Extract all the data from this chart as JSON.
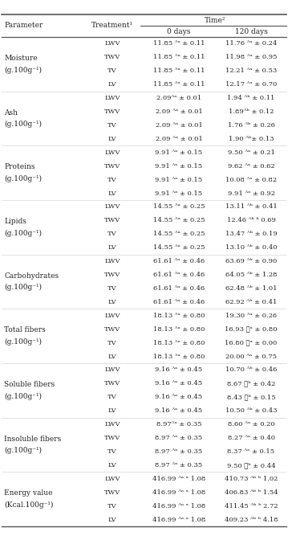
{
  "time_header": "Time²",
  "col_headers": [
    "Parameter",
    "Treatment¹",
    "0 days",
    "120 days"
  ],
  "rows": [
    [
      "Moisture\n(g.100g⁻¹)",
      "LWV",
      "11.85 ᴬᵃ ± 0.11",
      "11.76 ᴬᵃ ± 0.24"
    ],
    [
      "",
      "TWV",
      "11.85 ᴬᵃ ± 0.11",
      "11.98 ᴬᵃ ± 0.95"
    ],
    [
      "",
      "TV",
      "11.85 ᴬᵃ ± 0.11",
      "12.21 ᴬᵃ ± 0.53"
    ],
    [
      "",
      "LV",
      "11.85 ᴬᵃ ± 0.11",
      "12.17 ᴬᵃ ± 0.70"
    ],
    [
      "Ash\n(g.100g⁻¹)",
      "LWV",
      "2.09ᴬᵃ ± 0.01",
      "1.94 ᴬᵇ ± 0.11"
    ],
    [
      "",
      "TWV",
      "2.09 ᴬᵃ ± 0.01",
      "1.89ᴬᵇ ± 0.12"
    ],
    [
      "",
      "TV",
      "2.09 ᴬᵃ ± 0.01",
      "1.76 ᴬᵇ ± 0.26"
    ],
    [
      "",
      "LV",
      "2.09 ᴬᵃ ± 0.01",
      "1.90 ᴬᵇ± 0.13"
    ],
    [
      "Proteins\n(g.100g⁻¹)",
      "LWV",
      "9.91 ᴬᵃ ± 0.15",
      "9.50 ᴬᵃ ± 0.21"
    ],
    [
      "",
      "TWV",
      "9.91 ᴬᵃ ± 0.15",
      "9.62 ᴬᵃ ± 0.62"
    ],
    [
      "",
      "TV",
      "9.91 ᴬᵃ ± 0.15",
      "10.08 ᴬᵃ ± 0.82"
    ],
    [
      "",
      "LV",
      "9.91 ᴬᵃ ± 0.15",
      "9.91 ᴬᵃ ± 0.92"
    ],
    [
      "Lipids\n(g.100g⁻¹)",
      "LWV",
      "14.55 ᴬᵃ ± 0.25",
      "13.11 ᴬᵇ ± 0.41"
    ],
    [
      "",
      "TWV",
      "14.55 ᴬᵃ ± 0.25",
      "12.46 ᴬᵇ ᵇ 0.69"
    ],
    [
      "",
      "TV",
      "14.55 ᴬᵃ ± 0.25",
      "13.47 ᴬᵇ ± 0.19"
    ],
    [
      "",
      "LV",
      "14.55 ᴬᵃ ± 0.25",
      "13.10 ᴬᵇ ± 0.40"
    ],
    [
      "Carbohydrates\n(g.100g⁻¹)",
      "LWV",
      "61.61 ᴬᵃ ± 0.46",
      "63.69 ᴬᵇ ± 0.90"
    ],
    [
      "",
      "TWV",
      "61.61 ᴬᵃ ± 0.46",
      "64.05 ᴬᵇ ± 1.28"
    ],
    [
      "",
      "TV",
      "61.61 ᴬᵃ ± 0.46",
      "62.48 ᴬᵇ ± 1.01"
    ],
    [
      "",
      "LV",
      "61.61 ᴬᵃ ± 0.46",
      "62.92 ᴬᵇ ± 0.41"
    ],
    [
      "Total fibers\n(g.100g⁻¹)",
      "LWV",
      "18.13 ᴬᵃ ± 0.80",
      "19.30 ᴬᵃ ± 0.26"
    ],
    [
      "",
      "TWV",
      "18.13 ᴬᵃ ± 0.80",
      "16.93 ᷧᵃ ± 0.80"
    ],
    [
      "",
      "TV",
      "18.13 ᴬᵃ ± 0.80",
      "16.80 ᷧᵃ ± 0.00"
    ],
    [
      "",
      "LV",
      "18.13 ᴬᵃ ± 0.80",
      "20.00 ᴬᵃ ± 0.75"
    ],
    [
      "Soluble fibers\n(g.100g⁻¹)",
      "LWV",
      "9.16 ᴬᵃ ± 0.45",
      "10.70 ᴬᵇ ± 0.46"
    ],
    [
      "",
      "TWV",
      "9.16 ᴬᵃ ± 0.45",
      "8.67 ᷧᵇ ± 0.42"
    ],
    [
      "",
      "TV",
      "9.16 ᴬᵃ ± 0.45",
      "8.43 ᷧᵇ ± 0.15"
    ],
    [
      "",
      "LV",
      "9.16 ᴬᵃ ± 0.45",
      "10.50 ᴬᵇ ± 0.43"
    ],
    [
      "Insoluble fibers\n(g.100g⁻¹)",
      "LWV",
      "8.97ᴬᵃ ± 0.35",
      "8.60 ᴬᵃ ± 0.20"
    ],
    [
      "",
      "TWV",
      "8.97 ᴬᵃ ± 0.35",
      "8.27 ᴬᵃ ± 0.40"
    ],
    [
      "",
      "TV",
      "8.97 ᴬᵃ ± 0.35",
      "8.37 ᴬᵃ ± 0.15"
    ],
    [
      "",
      "LV",
      "8.97 ᴬᵃ ± 0.35",
      "9.50 ᷧᵇ ± 0.44"
    ],
    [
      "Energy value\n(Kcal.100g⁻¹)",
      "LWV",
      "416.99 ᴬᵃ ᵃ 1.08",
      "410.73 ᴬᵇ ᵇ 1.02"
    ],
    [
      "",
      "TWV",
      "416.99 ᴬᵃ ᵃ 1.08",
      "406.83 ᴬᵇ ᵇ 1.54"
    ],
    [
      "",
      "TV",
      "416.99 ᴬᵃ ᵃ 1.08",
      "411.45 ᴬᵇ ᵇ 2.72"
    ],
    [
      "",
      "LV",
      "416.99 ᴬᵃ ᵃ 1.08",
      "409.23 ᴬᵇ ᵇ 4.18"
    ]
  ],
  "group_rows": [
    0,
    4,
    8,
    12,
    16,
    20,
    24,
    28,
    32
  ],
  "n_rows": 36,
  "text_color": "#222222",
  "line_color_heavy": "#555555",
  "line_color_light": "#aaaaaa",
  "fontsize_data": 6.0,
  "fontsize_header": 6.5,
  "fontsize_param": 6.5
}
